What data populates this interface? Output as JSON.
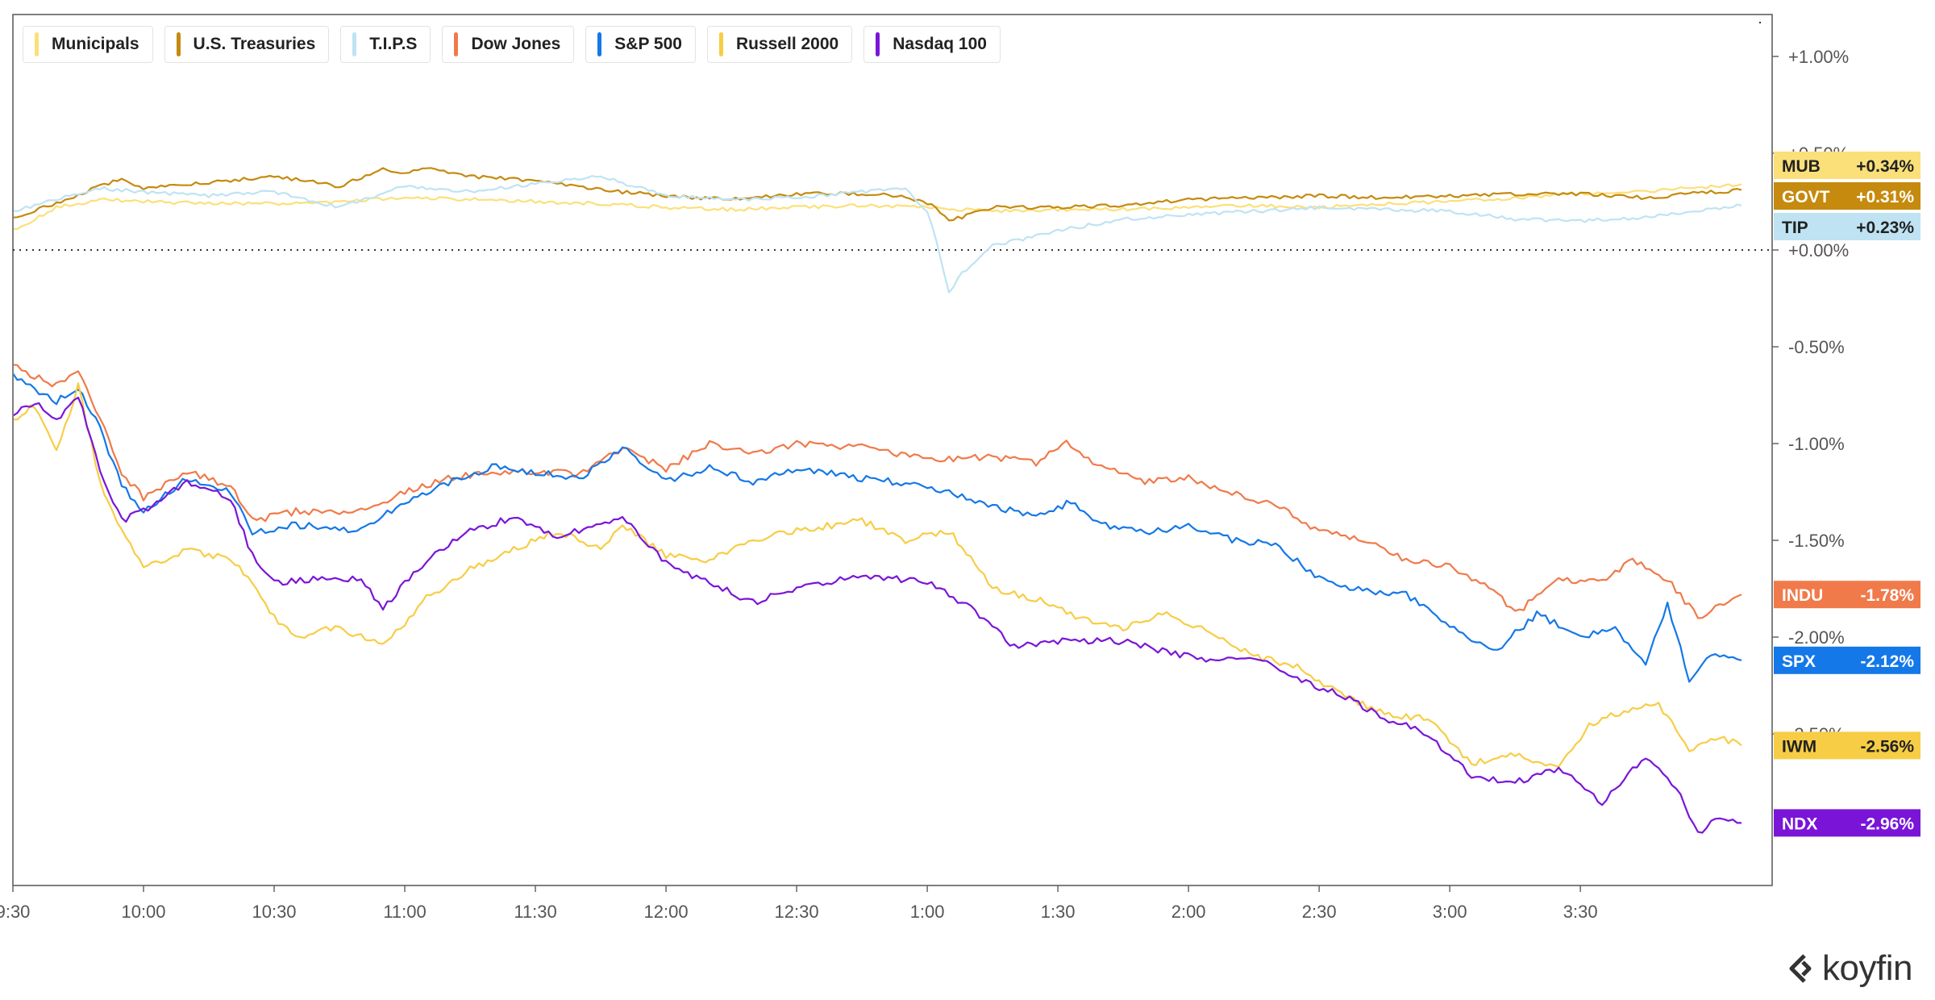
{
  "legend": [
    {
      "label": "Municipals",
      "color": "#fbe07a"
    },
    {
      "label": "U.S. Treasuries",
      "color": "#c58a0e"
    },
    {
      "label": "T.I.P.S",
      "color": "#bfe3f3"
    },
    {
      "label": "Dow Jones",
      "color": "#f07a4a"
    },
    {
      "label": "S&P 500",
      "color": "#1478e8"
    },
    {
      "label": "Russell 2000",
      "color": "#f7cd45"
    },
    {
      "label": "Nasdaq 100",
      "color": "#7a15d8"
    }
  ],
  "logo": {
    "text": "koyfin"
  },
  "chart_data": {
    "type": "line",
    "title": "",
    "xlabel": "",
    "ylabel": "",
    "x_unit": "minutes since 9:30 ET",
    "xlim": [
      0,
      397
    ],
    "ylim": [
      -3.2,
      1.2
    ],
    "x_ticks": [
      {
        "x": 0,
        "label": "9:30"
      },
      {
        "x": 30,
        "label": "10:00"
      },
      {
        "x": 60,
        "label": "10:30"
      },
      {
        "x": 90,
        "label": "11:00"
      },
      {
        "x": 120,
        "label": "11:30"
      },
      {
        "x": 150,
        "label": "12:00"
      },
      {
        "x": 180,
        "label": "12:30"
      },
      {
        "x": 210,
        "label": "1:00"
      },
      {
        "x": 240,
        "label": "1:30"
      },
      {
        "x": 270,
        "label": "2:00"
      },
      {
        "x": 300,
        "label": "2:30"
      },
      {
        "x": 330,
        "label": "3:00"
      },
      {
        "x": 360,
        "label": "3:30"
      }
    ],
    "y_ticks": [
      {
        "y": 1.0,
        "label": "+1.00%"
      },
      {
        "y": 0.5,
        "label": "+0.50%"
      },
      {
        "y": 0.0,
        "label": "+0.00%"
      },
      {
        "y": -0.5,
        "label": "-0.50%"
      },
      {
        "y": -1.0,
        "label": "-1.00%"
      },
      {
        "y": -1.5,
        "label": "-1.50%"
      },
      {
        "y": -2.0,
        "label": "-2.00%"
      },
      {
        "y": -2.5,
        "label": "-2.50%"
      }
    ],
    "zero_line": 0.0,
    "grid": false,
    "legend_position": "top-left",
    "series": [
      {
        "name": "Municipals",
        "ticker": "MUB",
        "last_label": "+0.34%",
        "color": "#fbe07a",
        "label_text_color": "#222",
        "points": [
          [
            0,
            0.1
          ],
          [
            10,
            0.22
          ],
          [
            20,
            0.26
          ],
          [
            30,
            0.25
          ],
          [
            45,
            0.24
          ],
          [
            60,
            0.24
          ],
          [
            75,
            0.25
          ],
          [
            90,
            0.27
          ],
          [
            105,
            0.26
          ],
          [
            120,
            0.25
          ],
          [
            135,
            0.24
          ],
          [
            150,
            0.22
          ],
          [
            165,
            0.21
          ],
          [
            180,
            0.22
          ],
          [
            195,
            0.23
          ],
          [
            210,
            0.22
          ],
          [
            225,
            0.2
          ],
          [
            240,
            0.21
          ],
          [
            255,
            0.21
          ],
          [
            270,
            0.22
          ],
          [
            285,
            0.23
          ],
          [
            300,
            0.22
          ],
          [
            315,
            0.24
          ],
          [
            330,
            0.25
          ],
          [
            345,
            0.27
          ],
          [
            360,
            0.29
          ],
          [
            375,
            0.3
          ],
          [
            390,
            0.33
          ],
          [
            397,
            0.34
          ]
        ]
      },
      {
        "name": "U.S. Treasuries",
        "ticker": "GOVT",
        "last_label": "+0.31%",
        "color": "#c58a0e",
        "label_text_color": "#ffffff",
        "points": [
          [
            0,
            0.17
          ],
          [
            10,
            0.24
          ],
          [
            20,
            0.33
          ],
          [
            25,
            0.37
          ],
          [
            30,
            0.32
          ],
          [
            45,
            0.35
          ],
          [
            60,
            0.38
          ],
          [
            75,
            0.33
          ],
          [
            85,
            0.42
          ],
          [
            90,
            0.4
          ],
          [
            95,
            0.42
          ],
          [
            105,
            0.38
          ],
          [
            120,
            0.36
          ],
          [
            135,
            0.31
          ],
          [
            150,
            0.28
          ],
          [
            165,
            0.26
          ],
          [
            180,
            0.29
          ],
          [
            195,
            0.29
          ],
          [
            205,
            0.28
          ],
          [
            212,
            0.22
          ],
          [
            215,
            0.15
          ],
          [
            225,
            0.22
          ],
          [
            240,
            0.22
          ],
          [
            255,
            0.23
          ],
          [
            270,
            0.26
          ],
          [
            285,
            0.27
          ],
          [
            300,
            0.28
          ],
          [
            315,
            0.27
          ],
          [
            330,
            0.28
          ],
          [
            345,
            0.29
          ],
          [
            360,
            0.29
          ],
          [
            375,
            0.27
          ],
          [
            385,
            0.29
          ],
          [
            397,
            0.31
          ]
        ]
      },
      {
        "name": "T.I.P.S",
        "ticker": "TIP",
        "last_label": "+0.23%",
        "color": "#bfe3f3",
        "label_text_color": "#222",
        "points": [
          [
            0,
            0.2
          ],
          [
            10,
            0.26
          ],
          [
            20,
            0.32
          ],
          [
            30,
            0.3
          ],
          [
            45,
            0.28
          ],
          [
            60,
            0.3
          ],
          [
            75,
            0.22
          ],
          [
            90,
            0.33
          ],
          [
            105,
            0.3
          ],
          [
            120,
            0.34
          ],
          [
            135,
            0.38
          ],
          [
            150,
            0.28
          ],
          [
            165,
            0.26
          ],
          [
            180,
            0.27
          ],
          [
            195,
            0.3
          ],
          [
            205,
            0.32
          ],
          [
            210,
            0.2
          ],
          [
            212,
            0.05
          ],
          [
            215,
            -0.22
          ],
          [
            218,
            -0.12
          ],
          [
            225,
            0.02
          ],
          [
            240,
            0.1
          ],
          [
            255,
            0.16
          ],
          [
            270,
            0.18
          ],
          [
            285,
            0.2
          ],
          [
            300,
            0.22
          ],
          [
            315,
            0.21
          ],
          [
            330,
            0.2
          ],
          [
            345,
            0.16
          ],
          [
            360,
            0.15
          ],
          [
            375,
            0.17
          ],
          [
            385,
            0.2
          ],
          [
            397,
            0.23
          ]
        ]
      },
      {
        "name": "Dow Jones",
        "ticker": "INDU",
        "last_label": "-1.78%",
        "color": "#f07a4a",
        "label_text_color": "#ffffff",
        "points": [
          [
            0,
            -0.6
          ],
          [
            10,
            -0.7
          ],
          [
            15,
            -0.64
          ],
          [
            20,
            -0.86
          ],
          [
            25,
            -1.15
          ],
          [
            30,
            -1.28
          ],
          [
            40,
            -1.14
          ],
          [
            50,
            -1.22
          ],
          [
            55,
            -1.4
          ],
          [
            65,
            -1.35
          ],
          [
            80,
            -1.35
          ],
          [
            90,
            -1.25
          ],
          [
            100,
            -1.18
          ],
          [
            110,
            -1.15
          ],
          [
            120,
            -1.14
          ],
          [
            130,
            -1.16
          ],
          [
            140,
            -1.02
          ],
          [
            150,
            -1.13
          ],
          [
            160,
            -1.0
          ],
          [
            170,
            -1.06
          ],
          [
            180,
            -1.0
          ],
          [
            195,
            -1.02
          ],
          [
            210,
            -1.08
          ],
          [
            225,
            -1.07
          ],
          [
            235,
            -1.1
          ],
          [
            242,
            -1.0
          ],
          [
            250,
            -1.12
          ],
          [
            260,
            -1.2
          ],
          [
            270,
            -1.18
          ],
          [
            280,
            -1.25
          ],
          [
            290,
            -1.32
          ],
          [
            300,
            -1.45
          ],
          [
            310,
            -1.5
          ],
          [
            320,
            -1.6
          ],
          [
            330,
            -1.64
          ],
          [
            340,
            -1.75
          ],
          [
            345,
            -1.88
          ],
          [
            355,
            -1.7
          ],
          [
            365,
            -1.72
          ],
          [
            372,
            -1.6
          ],
          [
            380,
            -1.7
          ],
          [
            387,
            -1.9
          ],
          [
            397,
            -1.78
          ]
        ]
      },
      {
        "name": "S&P 500",
        "ticker": "SPX",
        "last_label": "-2.12%",
        "color": "#1478e8",
        "label_text_color": "#ffffff",
        "points": [
          [
            0,
            -0.65
          ],
          [
            10,
            -0.78
          ],
          [
            15,
            -0.72
          ],
          [
            20,
            -0.92
          ],
          [
            25,
            -1.22
          ],
          [
            30,
            -1.35
          ],
          [
            40,
            -1.18
          ],
          [
            50,
            -1.25
          ],
          [
            55,
            -1.46
          ],
          [
            65,
            -1.42
          ],
          [
            80,
            -1.45
          ],
          [
            90,
            -1.3
          ],
          [
            100,
            -1.2
          ],
          [
            110,
            -1.12
          ],
          [
            120,
            -1.15
          ],
          [
            130,
            -1.18
          ],
          [
            140,
            -1.02
          ],
          [
            150,
            -1.2
          ],
          [
            160,
            -1.12
          ],
          [
            170,
            -1.2
          ],
          [
            180,
            -1.13
          ],
          [
            195,
            -1.18
          ],
          [
            210,
            -1.22
          ],
          [
            225,
            -1.32
          ],
          [
            235,
            -1.38
          ],
          [
            243,
            -1.3
          ],
          [
            250,
            -1.42
          ],
          [
            260,
            -1.46
          ],
          [
            270,
            -1.42
          ],
          [
            280,
            -1.5
          ],
          [
            290,
            -1.52
          ],
          [
            300,
            -1.7
          ],
          [
            310,
            -1.76
          ],
          [
            320,
            -1.78
          ],
          [
            330,
            -1.95
          ],
          [
            340,
            -2.08
          ],
          [
            350,
            -1.88
          ],
          [
            360,
            -2.0
          ],
          [
            368,
            -1.95
          ],
          [
            375,
            -2.15
          ],
          [
            380,
            -1.82
          ],
          [
            385,
            -2.22
          ],
          [
            390,
            -2.08
          ],
          [
            397,
            -2.12
          ]
        ]
      },
      {
        "name": "Russell 2000",
        "ticker": "IWM",
        "last_label": "-2.56%",
        "color": "#f7cd45",
        "label_text_color": "#222",
        "points": [
          [
            0,
            -0.88
          ],
          [
            5,
            -0.8
          ],
          [
            10,
            -1.05
          ],
          [
            15,
            -0.7
          ],
          [
            20,
            -1.2
          ],
          [
            25,
            -1.45
          ],
          [
            30,
            -1.65
          ],
          [
            40,
            -1.55
          ],
          [
            50,
            -1.6
          ],
          [
            55,
            -1.72
          ],
          [
            60,
            -1.9
          ],
          [
            65,
            -2.0
          ],
          [
            75,
            -1.95
          ],
          [
            85,
            -2.05
          ],
          [
            95,
            -1.8
          ],
          [
            105,
            -1.65
          ],
          [
            115,
            -1.55
          ],
          [
            125,
            -1.45
          ],
          [
            135,
            -1.55
          ],
          [
            140,
            -1.42
          ],
          [
            150,
            -1.58
          ],
          [
            160,
            -1.6
          ],
          [
            170,
            -1.5
          ],
          [
            180,
            -1.45
          ],
          [
            195,
            -1.4
          ],
          [
            205,
            -1.5
          ],
          [
            215,
            -1.45
          ],
          [
            225,
            -1.75
          ],
          [
            235,
            -1.8
          ],
          [
            245,
            -1.9
          ],
          [
            255,
            -1.95
          ],
          [
            265,
            -1.88
          ],
          [
            275,
            -1.98
          ],
          [
            285,
            -2.1
          ],
          [
            295,
            -2.15
          ],
          [
            305,
            -2.3
          ],
          [
            315,
            -2.4
          ],
          [
            325,
            -2.42
          ],
          [
            335,
            -2.65
          ],
          [
            345,
            -2.6
          ],
          [
            355,
            -2.68
          ],
          [
            362,
            -2.45
          ],
          [
            370,
            -2.38
          ],
          [
            378,
            -2.35
          ],
          [
            385,
            -2.58
          ],
          [
            392,
            -2.52
          ],
          [
            397,
            -2.56
          ]
        ]
      },
      {
        "name": "Nasdaq 100",
        "ticker": "NDX",
        "last_label": "-2.96%",
        "color": "#7a15d8",
        "label_text_color": "#ffffff",
        "points": [
          [
            0,
            -0.85
          ],
          [
            5,
            -0.78
          ],
          [
            10,
            -0.88
          ],
          [
            15,
            -0.75
          ],
          [
            20,
            -1.15
          ],
          [
            25,
            -1.4
          ],
          [
            30,
            -1.35
          ],
          [
            40,
            -1.2
          ],
          [
            50,
            -1.28
          ],
          [
            55,
            -1.58
          ],
          [
            60,
            -1.72
          ],
          [
            70,
            -1.7
          ],
          [
            80,
            -1.7
          ],
          [
            85,
            -1.85
          ],
          [
            95,
            -1.6
          ],
          [
            105,
            -1.45
          ],
          [
            115,
            -1.38
          ],
          [
            125,
            -1.48
          ],
          [
            140,
            -1.38
          ],
          [
            150,
            -1.62
          ],
          [
            160,
            -1.72
          ],
          [
            170,
            -1.82
          ],
          [
            180,
            -1.75
          ],
          [
            195,
            -1.68
          ],
          [
            210,
            -1.72
          ],
          [
            220,
            -1.85
          ],
          [
            230,
            -2.05
          ],
          [
            240,
            -2.02
          ],
          [
            255,
            -2.02
          ],
          [
            265,
            -2.08
          ],
          [
            275,
            -2.12
          ],
          [
            285,
            -2.1
          ],
          [
            295,
            -2.22
          ],
          [
            305,
            -2.3
          ],
          [
            315,
            -2.42
          ],
          [
            325,
            -2.5
          ],
          [
            335,
            -2.72
          ],
          [
            345,
            -2.75
          ],
          [
            355,
            -2.68
          ],
          [
            365,
            -2.85
          ],
          [
            375,
            -2.62
          ],
          [
            382,
            -2.78
          ],
          [
            387,
            -3.02
          ],
          [
            392,
            -2.92
          ],
          [
            397,
            -2.96
          ]
        ]
      }
    ]
  }
}
